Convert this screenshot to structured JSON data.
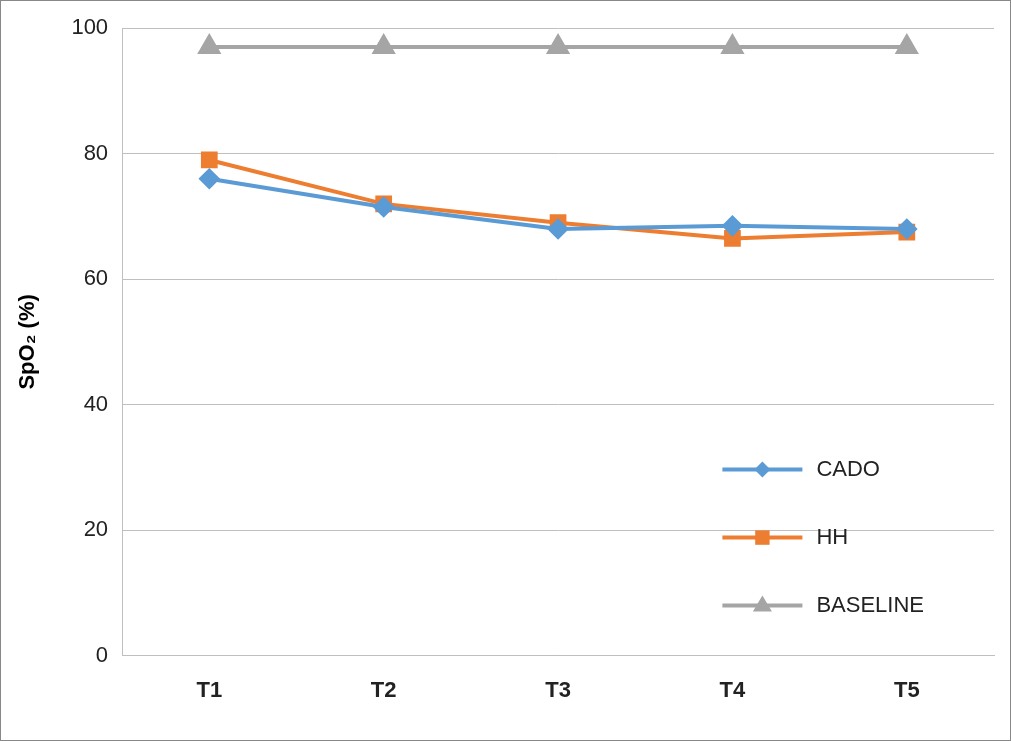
{
  "chart_data": {
    "type": "line",
    "y_label": "SpO₂ (%)",
    "categories": [
      "T1",
      "T2",
      "T3",
      "T4",
      "T5"
    ],
    "series": [
      {
        "name": "CADO",
        "color": "#5b9bd5",
        "marker": "diamond",
        "values": [
          76,
          71.5,
          68,
          68.5,
          68
        ]
      },
      {
        "name": "HH",
        "color": "#ed7d31",
        "marker": "square",
        "values": [
          79,
          72,
          69,
          66.5,
          67.5
        ]
      },
      {
        "name": "BASELINE",
        "color": "#a5a5a5",
        "marker": "triangle",
        "values": [
          97,
          97,
          97,
          97,
          97
        ]
      }
    ],
    "ylim": [
      0,
      100
    ],
    "yticks": [
      0,
      20,
      40,
      60,
      80,
      100
    ],
    "grid": true,
    "legend": "lower right"
  }
}
